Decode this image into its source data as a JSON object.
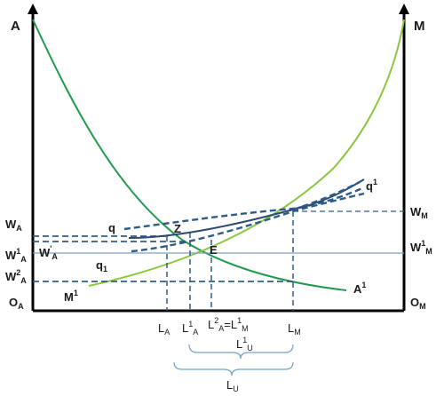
{
  "diagram": {
    "axis_left_top": "A",
    "axis_right_top": "M",
    "origin_left": "O",
    "origin_left_sub": "A",
    "origin_right": "O",
    "origin_right_sub": "M",
    "curve_A1": {
      "main": "A",
      "sup": "1"
    },
    "curve_M1": {
      "main": "M",
      "sup": "1"
    },
    "point_Z": "Z",
    "point_E": "E",
    "curve_q": "q",
    "curve_q1_left": {
      "main": "q",
      "sub": "1"
    },
    "curve_q1_right": {
      "main": "q",
      "sup": "1"
    },
    "wage_left": [
      {
        "main": "W",
        "sub": "A"
      },
      {
        "main": "W",
        "sup": "1",
        "sub": "A"
      },
      {
        "main": "W",
        "sup": "'",
        "sub": "A"
      },
      {
        "main": "W",
        "sup": "2",
        "sub": "A"
      }
    ],
    "wage_right": [
      {
        "main": "W",
        "sub": "M"
      },
      {
        "main": "W",
        "sup": "1",
        "sub": "M"
      }
    ],
    "x_labels": {
      "LA": {
        "main": "L",
        "sub": "A"
      },
      "L1A": {
        "main": "L",
        "sup": "1",
        "sub": "A"
      },
      "L2A": {
        "main": "L",
        "sup": "2",
        "sub": "A",
        "eq": "=L",
        "eq_sup": "1",
        "eq_sub": "M"
      },
      "LM": {
        "main": "L",
        "sub": "M"
      }
    },
    "brace_labels": {
      "L1U": {
        "main": "L",
        "sup": "1",
        "sub": "U"
      },
      "LU": {
        "main": "L",
        "sub": "U"
      }
    },
    "colors": {
      "axis": "#000000",
      "demand_A": "#1e9a4a",
      "demand_M": "#8cc63f",
      "dashed": "#2e5c8a",
      "blue_curve": "#2b4a6f",
      "light_line": "#7f9fbf",
      "brace": "#6fa3c8"
    }
  }
}
